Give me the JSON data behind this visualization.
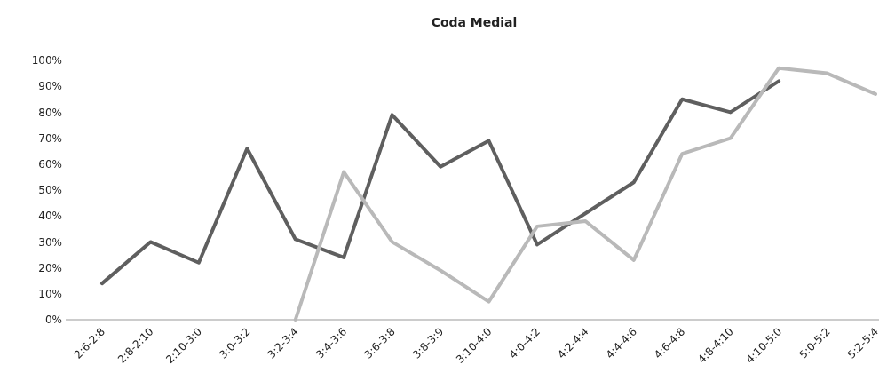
{
  "chart_data": {
    "type": "line",
    "title": "Coda Medial",
    "categories": [
      "2:6-2:8",
      "2:8-2:10",
      "2:10-3:0",
      "3:0-3:2",
      "3:2-3:4",
      "3:4-3:6",
      "3:6-3:8",
      "3:8-3:9",
      "3:10-4:0",
      "4:0-4:2",
      "4:2-4:4",
      "4:4-4:6",
      "4:6-4:8",
      "4:8-4:10",
      "4:10-5:0",
      "5:0-5:2",
      "5:2-5:4"
    ],
    "series": [
      {
        "color": "#5f5f5f",
        "values": [
          14,
          30,
          22,
          66,
          31,
          24,
          79,
          59,
          69,
          29,
          41,
          53,
          85,
          80,
          92,
          null,
          null
        ]
      },
      {
        "color": "#b9b9b9",
        "values": [
          null,
          null,
          null,
          null,
          0,
          57,
          30,
          19,
          7,
          36,
          38,
          23,
          64,
          70,
          97,
          95,
          87
        ]
      }
    ],
    "ylim": [
      0,
      100
    ],
    "yticks": [
      {
        "value": 0,
        "label": "0%"
      },
      {
        "value": 10,
        "label": "10%"
      },
      {
        "value": 20,
        "label": "20%"
      },
      {
        "value": 30,
        "label": "30%"
      },
      {
        "value": 40,
        "label": "40%"
      },
      {
        "value": 50,
        "label": "50%"
      },
      {
        "value": 60,
        "label": "60%"
      },
      {
        "value": 70,
        "label": "70%"
      },
      {
        "value": 80,
        "label": "80%"
      },
      {
        "value": 90,
        "label": "90%"
      },
      {
        "value": 100,
        "label": "100%"
      }
    ],
    "grid": false,
    "marker": "none",
    "line_style": "solid"
  }
}
